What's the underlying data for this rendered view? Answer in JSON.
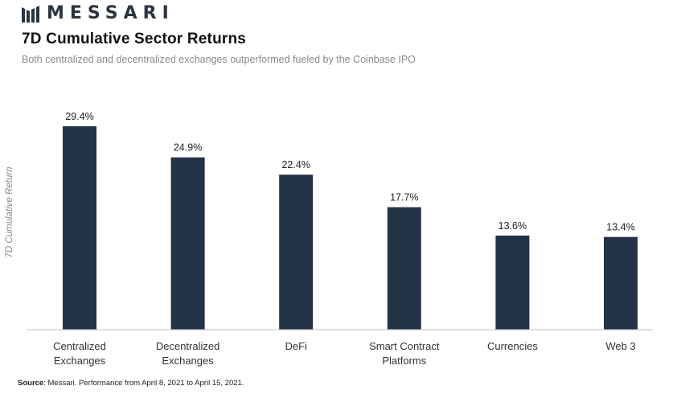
{
  "brand": {
    "name": "MESSARI",
    "logo_icon": "messari-logo-icon"
  },
  "header": {
    "title": "7D Cumulative Sector Returns",
    "subtitle": "Both centralized and decentralized exchanges outperformed fueled by the Coinbase IPO"
  },
  "footer": {
    "source_label": "Source",
    "source_text": ": Messari. Performance from April 8, 2021 to April 15, 2021."
  },
  "chart_data": {
    "type": "bar",
    "title": "7D Cumulative Sector Returns",
    "ylabel": "7D Cumulative Return",
    "xlabel": "",
    "categories": [
      [
        "Centralized",
        "Exchanges"
      ],
      [
        "Decentralized",
        "Exchanges"
      ],
      [
        "DeFi"
      ],
      [
        "Smart Contract",
        "Platforms"
      ],
      [
        "Currencies"
      ],
      [
        "Web 3"
      ]
    ],
    "values": [
      29.4,
      24.9,
      22.4,
      17.7,
      13.6,
      13.4
    ],
    "value_labels": [
      "29.4%",
      "24.9%",
      "22.4%",
      "17.7%",
      "13.6%",
      "13.4%"
    ],
    "ylim": [
      0,
      29.4
    ],
    "grid": false,
    "legend": "none",
    "bar_color": "#243447"
  }
}
